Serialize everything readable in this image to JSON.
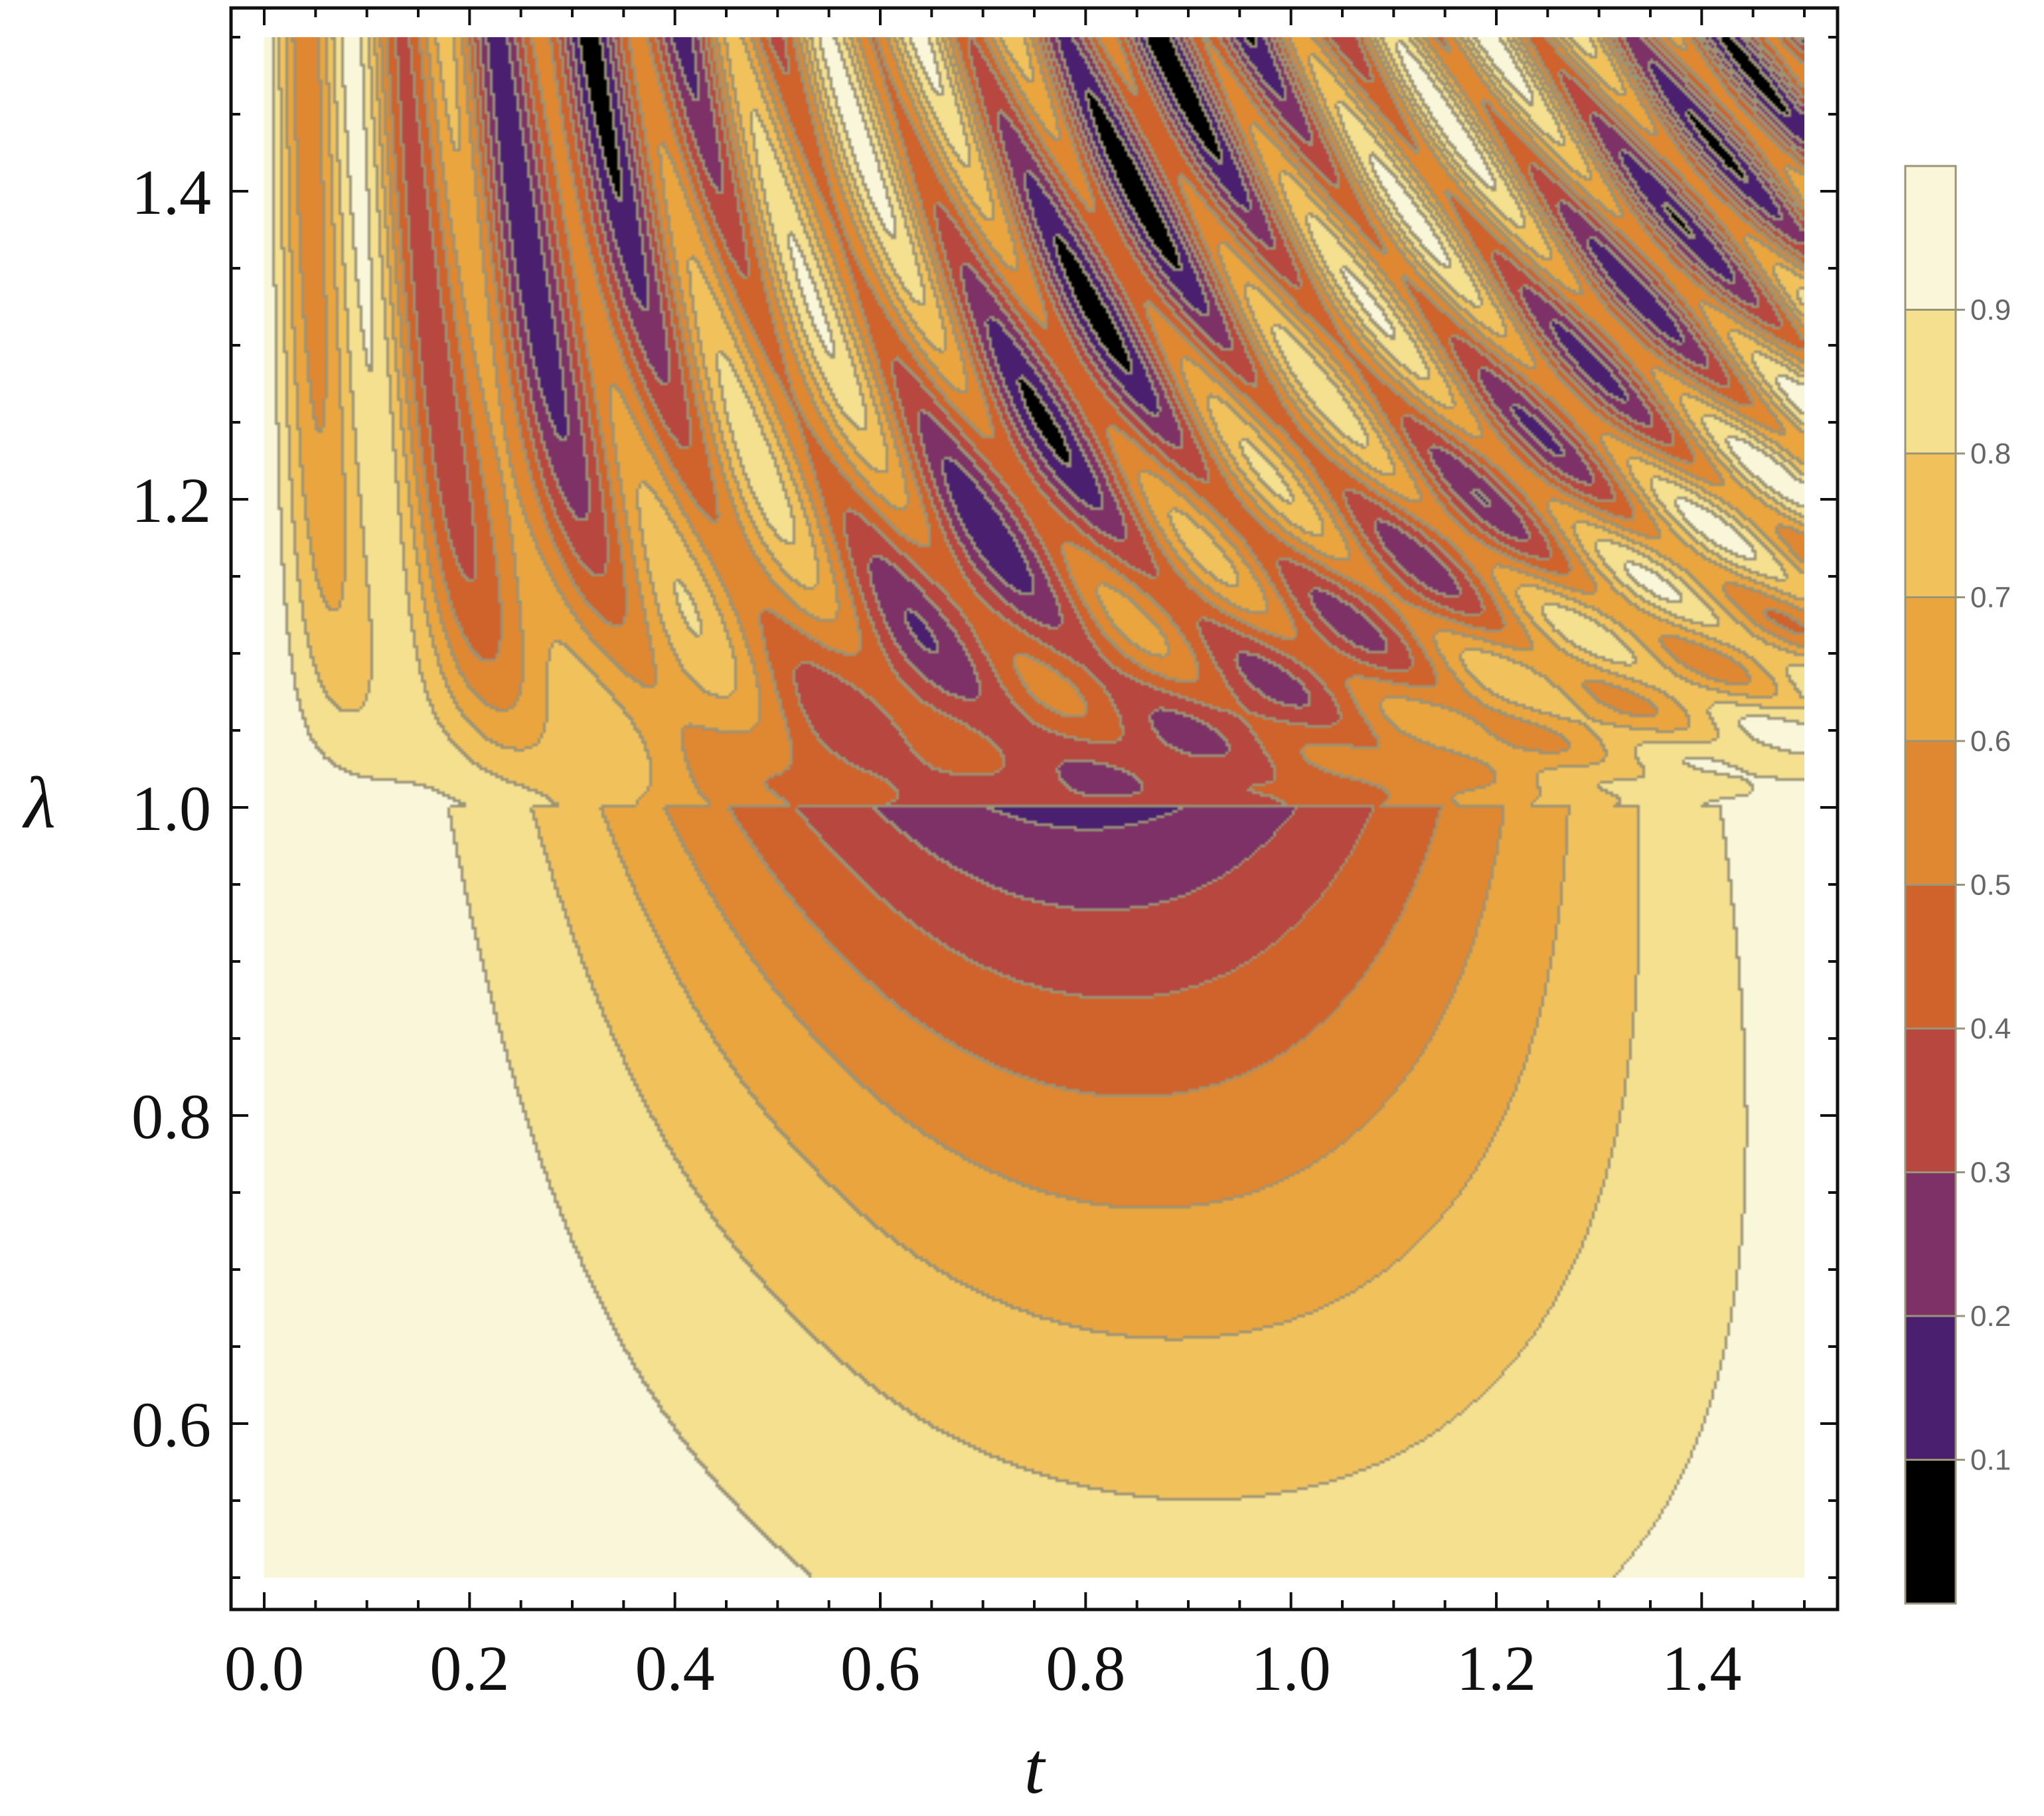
{
  "chart_data": {
    "type": "heatmap",
    "style": "filled contour plot",
    "xlabel": "t",
    "ylabel": "λ",
    "xlim": [
      0.0,
      1.5
    ],
    "ylim": [
      0.5,
      1.5
    ],
    "x_ticks": [
      "0.0",
      "0.2",
      "0.4",
      "0.6",
      "0.8",
      "1.0",
      "1.2",
      "1.4"
    ],
    "y_ticks": [
      "0.6",
      "0.8",
      "1.0",
      "1.2",
      "1.4"
    ],
    "colorbar": {
      "levels": [
        0.0,
        0.1,
        0.2,
        0.3,
        0.4,
        0.5,
        0.6,
        0.7,
        0.8,
        0.9,
        1.0
      ],
      "tick_labels": [
        "0.1",
        "0.2",
        "0.3",
        "0.4",
        "0.5",
        "0.6",
        "0.7",
        "0.8",
        "0.9"
      ],
      "colors": [
        "#000000",
        "#4b1f6f",
        "#7e3166",
        "#b8473f",
        "#d0632b",
        "#e08731",
        "#eaa53e",
        "#f1c25c",
        "#f5e08f",
        "#faf6d9"
      ]
    },
    "contour_line_color": "#9a9478",
    "regimes": [
      {
        "lambda_range": [
          0.5,
          1.0
        ],
        "description": "smooth nested minimum near t 0.8"
      },
      {
        "lambda_range": [
          1.0,
          1.5
        ],
        "description": "oscillatory lattice pattern"
      }
    ]
  }
}
